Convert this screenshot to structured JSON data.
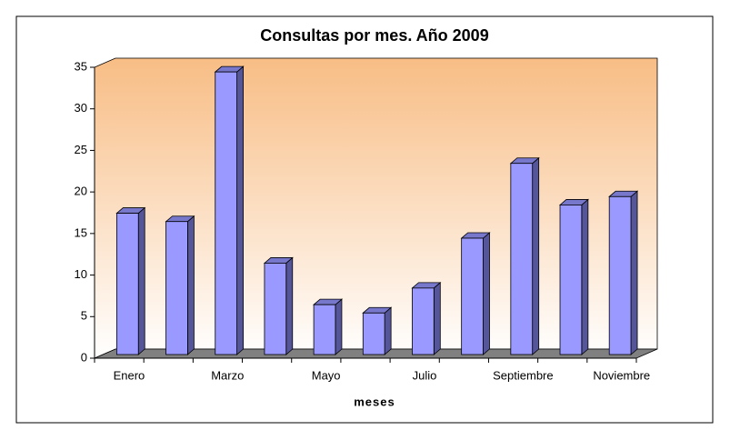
{
  "chart_data": {
    "type": "bar3d",
    "title": "Consultas por mes. Año 2009",
    "x_label": "meses",
    "categories": [
      "Enero",
      null,
      "Marzo",
      null,
      "Mayo",
      null,
      "Julio",
      null,
      "Septiembre",
      null,
      "Noviembre"
    ],
    "values": [
      17,
      16,
      34,
      11,
      6,
      5,
      8,
      14,
      23,
      18,
      19
    ],
    "color": "#9999ff",
    "ylim": [
      0,
      35
    ],
    "yticks": [
      0,
      5,
      10,
      15,
      20,
      25,
      30,
      35
    ]
  }
}
